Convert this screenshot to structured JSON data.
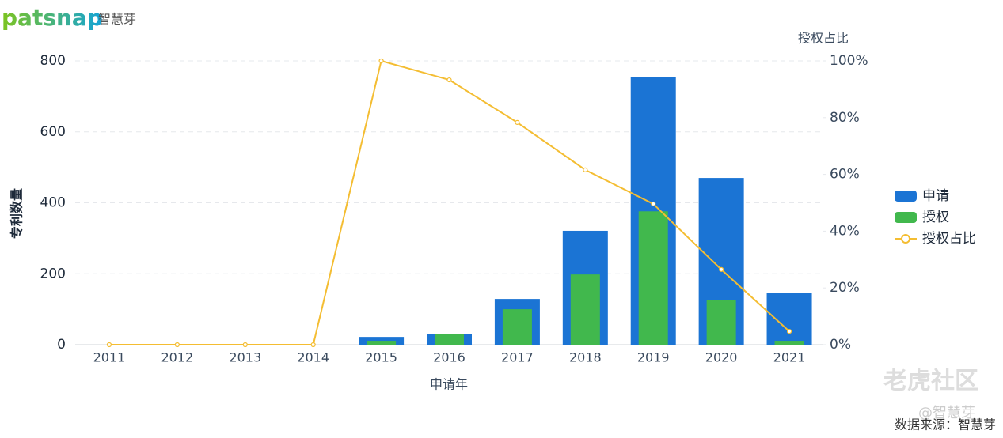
{
  "brand": {
    "logo": "patsnap",
    "name": "智慧芽"
  },
  "watermark": {
    "site": "老虎社区",
    "handle": "@智慧芽"
  },
  "source": "数据来源：智慧芽",
  "chart_data": {
    "type": "bar-line",
    "x_label": "申请年",
    "y_label": "专利数量",
    "y2_label": "授权占比",
    "categories": [
      "2011",
      "2012",
      "2013",
      "2014",
      "2015",
      "2016",
      "2017",
      "2018",
      "2019",
      "2020",
      "2021"
    ],
    "series": [
      {
        "name": "申请",
        "type": "bar",
        "color": "#1b74d4",
        "values": [
          0,
          0,
          0,
          0,
          22,
          31,
          129,
          321,
          755,
          470,
          147
        ]
      },
      {
        "name": "授权",
        "type": "bar",
        "color": "#41b84d",
        "values": [
          0,
          0,
          0,
          0,
          11,
          31,
          100,
          198,
          376,
          125,
          11
        ]
      },
      {
        "name": "授权占比",
        "type": "line",
        "axis": "y2",
        "color": "#f4bd32",
        "values": [
          0,
          0,
          0,
          0,
          100,
          93.3,
          78.3,
          61.6,
          49.6,
          26.5,
          4.7
        ]
      }
    ],
    "ylim": [
      0,
      800
    ],
    "yticks": [
      0,
      200,
      400,
      600,
      800
    ],
    "y2lim": [
      0,
      100
    ],
    "y2ticks": [
      {
        "value": 0,
        "label": "0%"
      },
      {
        "value": 20,
        "label": "20%"
      },
      {
        "value": 40,
        "label": "40%"
      },
      {
        "value": 60,
        "label": "60%"
      },
      {
        "value": 80,
        "label": "80%"
      },
      {
        "value": 100,
        "label": "100%"
      }
    ],
    "grid": true,
    "legend": "right"
  }
}
